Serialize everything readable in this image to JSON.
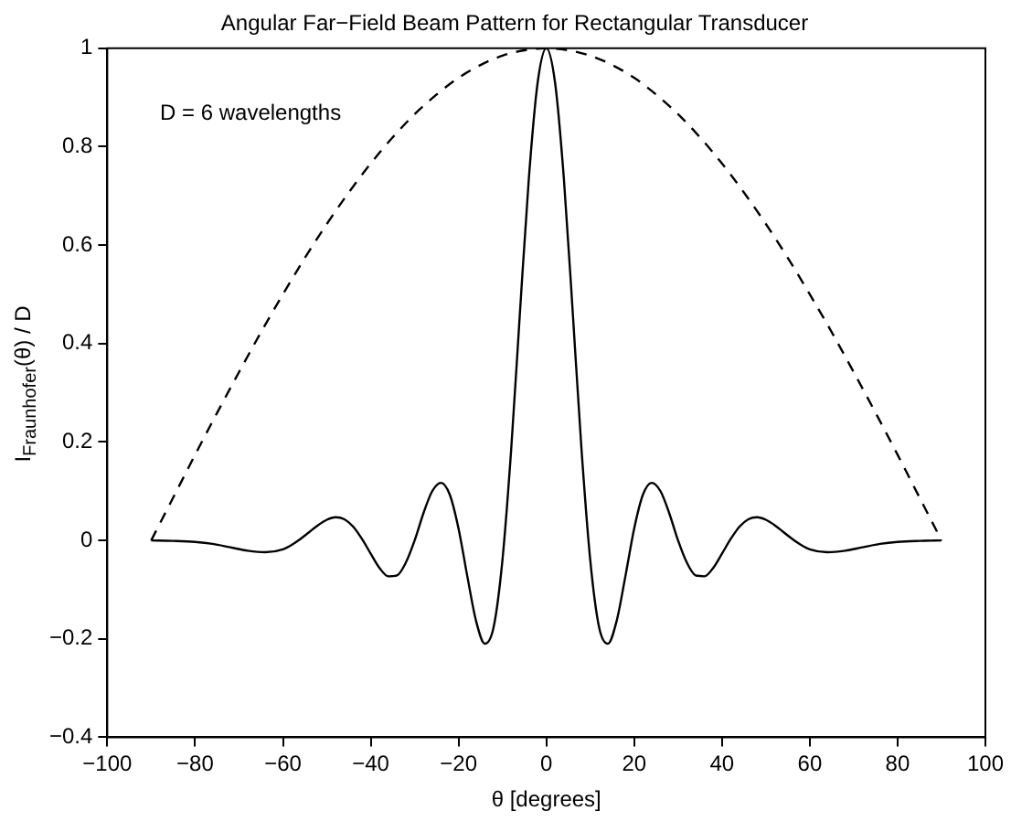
{
  "chart_data": {
    "type": "line",
    "title": "Angular Far−Field Beam Pattern for Rectangular Transducer",
    "xlabel": "θ [degrees]",
    "ylabel": "I$_{Fraunhofer}$(θ) / D",
    "annotations": [
      "D = 6 wavelengths"
    ],
    "xlim": [
      -100,
      100
    ],
    "xticks": [
      {
        "value": -100,
        "label": "−100"
      },
      {
        "value": -80,
        "label": "−80"
      },
      {
        "value": -60,
        "label": "−60"
      },
      {
        "value": -40,
        "label": "−40"
      },
      {
        "value": -20,
        "label": "−20"
      },
      0,
      20,
      40,
      60,
      80,
      100
    ],
    "ylim": [
      -0.4,
      1
    ],
    "yticks": [
      {
        "value": -0.4,
        "label": "−0.4"
      },
      {
        "value": -0.2,
        "label": "−0.2"
      },
      0,
      0.2,
      0.4,
      0.6,
      0.8,
      1
    ],
    "grid": false,
    "legend": false,
    "marker": "none",
    "series": [
      {
        "color": "#000000",
        "line_style": "solid",
        "x": [
          -90,
          -85,
          -80,
          -76,
          -72,
          -68,
          -64,
          -60,
          -58,
          -56,
          -54,
          -52,
          -50,
          -48,
          -46,
          -44,
          -42,
          -40,
          -38,
          -36,
          -34,
          -32,
          -30,
          -28,
          -26,
          -24,
          -22,
          -20,
          -18,
          -16,
          -14,
          -12,
          -10,
          -8,
          -6,
          -4,
          -2,
          0,
          2,
          4,
          6,
          8,
          10,
          12,
          14,
          16,
          18,
          20,
          22,
          24,
          26,
          28,
          30,
          32,
          34,
          36,
          38,
          40,
          42,
          44,
          46,
          48,
          50,
          52,
          54,
          56,
          58,
          60,
          64,
          68,
          72,
          76,
          80,
          85,
          90
        ],
        "values": [
          0,
          -0.001,
          -0.003,
          -0.007,
          -0.014,
          -0.021,
          -0.024,
          -0.018,
          -0.009,
          0.003,
          0.017,
          0.031,
          0.042,
          0.047,
          0.043,
          0.028,
          0.003,
          -0.027,
          -0.056,
          -0.073,
          -0.071,
          -0.045,
          0,
          0.055,
          0.1,
          0.117,
          0.093,
          0.024,
          -0.073,
          -0.164,
          -0.21,
          -0.176,
          -0.04,
          0.186,
          0.465,
          0.734,
          0.929,
          1,
          0.929,
          0.734,
          0.465,
          0.186,
          -0.04,
          -0.176,
          -0.21,
          -0.164,
          -0.073,
          0.024,
          0.093,
          0.117,
          0.1,
          0.055,
          0,
          -0.045,
          -0.071,
          -0.073,
          -0.056,
          -0.027,
          0.003,
          0.028,
          0.043,
          0.047,
          0.042,
          0.031,
          0.017,
          0.003,
          -0.009,
          -0.018,
          -0.024,
          -0.021,
          -0.014,
          -0.007,
          -0.003,
          -0.001,
          0
        ]
      },
      {
        "color": "#000000",
        "line_style": "dashed",
        "x": [
          -90,
          -85,
          -80,
          -75,
          -70,
          -65,
          -60,
          -55,
          -50,
          -45,
          -40,
          -35,
          -30,
          -25,
          -20,
          -15,
          -10,
          -5,
          0,
          5,
          10,
          15,
          20,
          25,
          30,
          35,
          40,
          45,
          50,
          55,
          60,
          65,
          70,
          75,
          80,
          85,
          90
        ],
        "values": [
          0,
          0.087,
          0.174,
          0.259,
          0.342,
          0.423,
          0.5,
          0.574,
          0.643,
          0.707,
          0.766,
          0.819,
          0.866,
          0.906,
          0.94,
          0.966,
          0.985,
          0.996,
          1,
          0.996,
          0.985,
          0.966,
          0.94,
          0.906,
          0.866,
          0.819,
          0.766,
          0.707,
          0.643,
          0.574,
          0.5,
          0.423,
          0.342,
          0.259,
          0.174,
          0.087,
          0
        ]
      }
    ]
  }
}
